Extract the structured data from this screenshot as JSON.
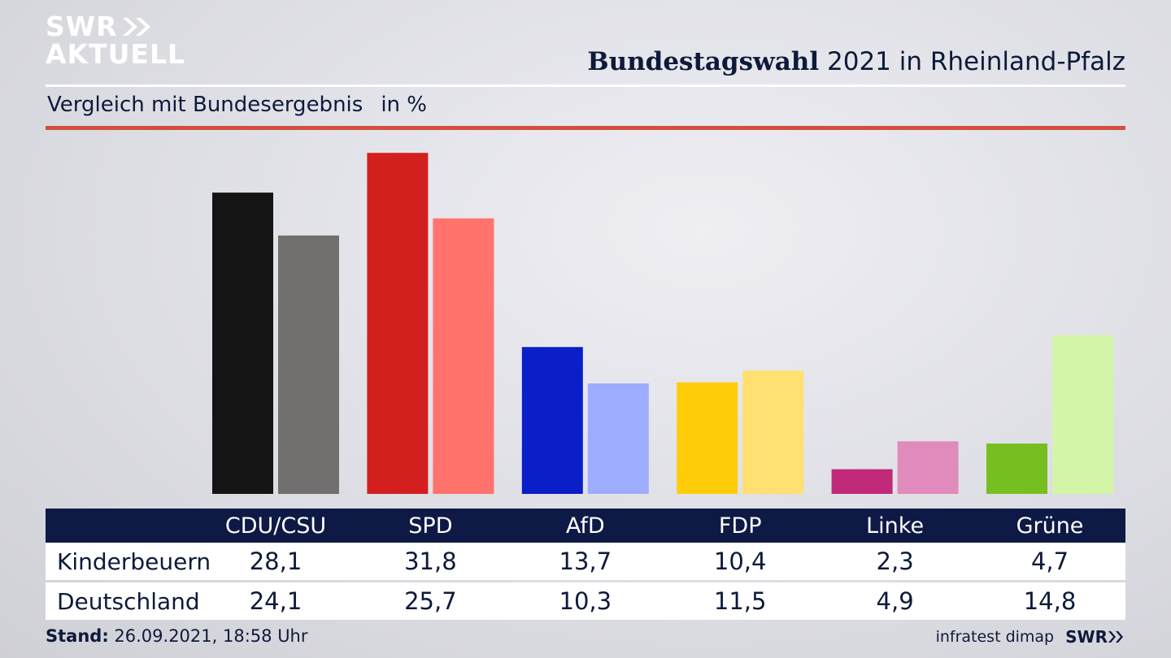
{
  "logo": {
    "line1": "SWR",
    "line2": "AKTUELL"
  },
  "header": {
    "title_bold": "Bundestagswahl",
    "title_rest": "2021 in Rheinland-Pfalz",
    "subtitle": "Vergleich mit Bundesergebnis",
    "unit": "in %"
  },
  "chart_data": {
    "type": "bar",
    "categories": [
      "CDU/CSU",
      "SPD",
      "AfD",
      "FDP",
      "Linke",
      "Grüne"
    ],
    "series": [
      {
        "name": "Kinderbeuern",
        "values": [
          28.1,
          31.8,
          13.7,
          10.4,
          2.3,
          4.7
        ],
        "colors": [
          "#141414",
          "#d41f1f",
          "#0a1fc8",
          "#ffcc0a",
          "#c02a78",
          "#77bf20"
        ]
      },
      {
        "name": "Deutschland",
        "values": [
          24.1,
          25.7,
          10.3,
          11.5,
          4.9,
          14.8
        ],
        "colors": [
          "#72706e",
          "#ff736c",
          "#9eacff",
          "#ffe070",
          "#e08bbc",
          "#d2f5a8"
        ]
      }
    ],
    "display_values": {
      "Kinderbeuern": [
        "28,1",
        "31,8",
        "13,7",
        "10,4",
        "2,3",
        "4,7"
      ],
      "Deutschland": [
        "24,1",
        "25,7",
        "10,3",
        "11,5",
        "4,9",
        "14,8"
      ]
    },
    "ylim": [
      0,
      32
    ],
    "grid": false,
    "legend": "table-below"
  },
  "footer": {
    "stand_label": "Stand:",
    "stand_value": "26.09.2021, 18:58 Uhr",
    "source": "infratest dimap",
    "brand": "SWR"
  }
}
